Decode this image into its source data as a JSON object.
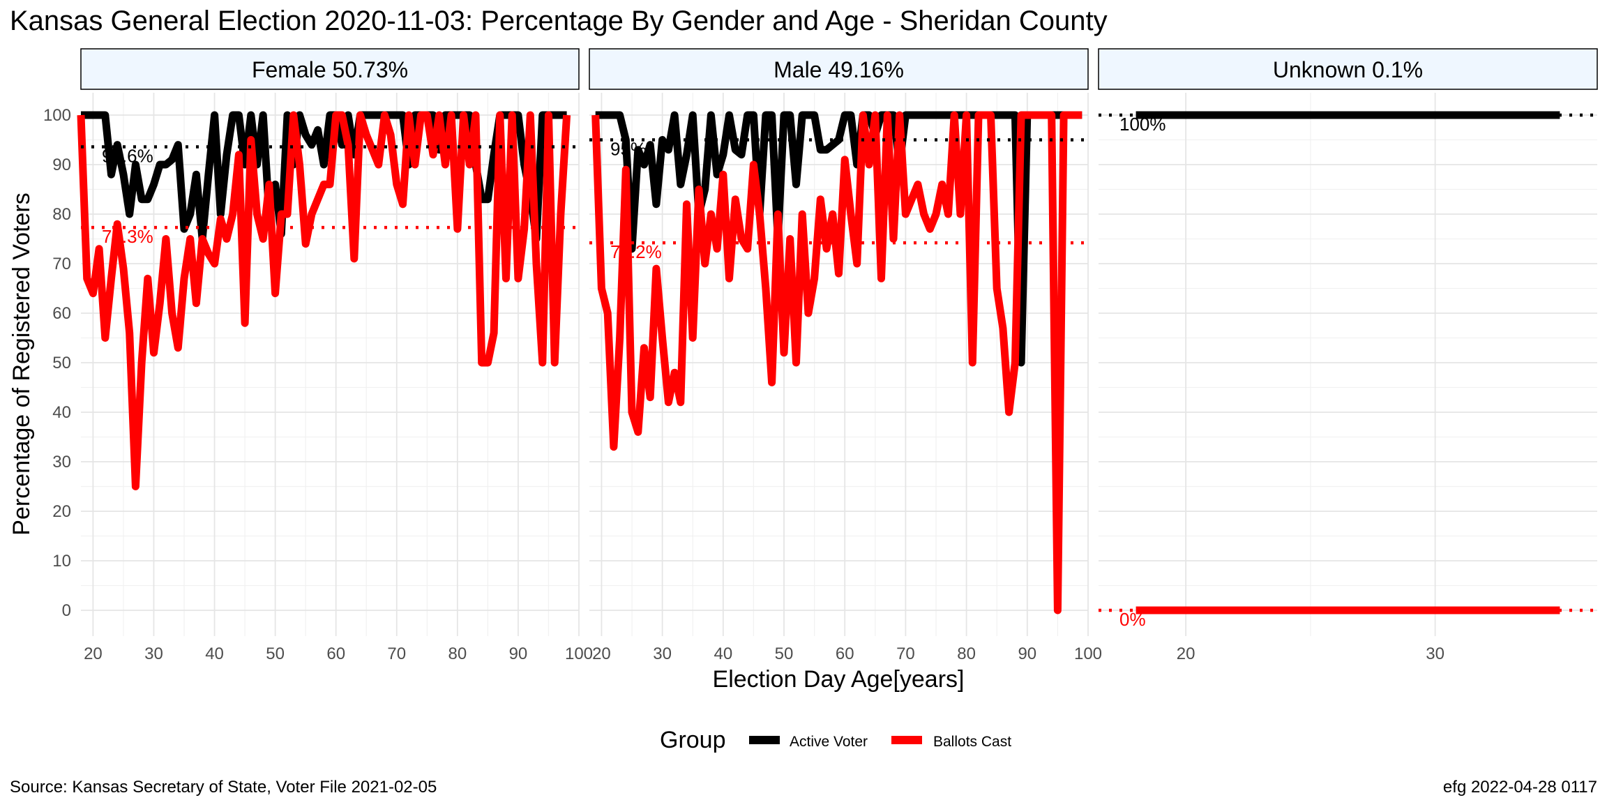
{
  "title": "Kansas General Election 2020-11-03:  Percentage By Gender and Age - Sheridan County",
  "source": "Source:  Kansas Secretary of State, Voter File  2021-02-05",
  "stamp": "efg 2022-04-28 0117",
  "legend": {
    "title": "Group",
    "items": [
      {
        "label": "Active Voter",
        "color": "#000000"
      },
      {
        "label": "Ballots Cast",
        "color": "#ff0000"
      }
    ]
  },
  "chart_data": {
    "type": "line",
    "xlabel": "Election Day Age[years]",
    "ylabel": "Percentage of Registered Voters",
    "ylim": [
      0,
      100
    ],
    "yticks": [
      0,
      10,
      20,
      30,
      40,
      50,
      60,
      70,
      80,
      90,
      100
    ],
    "panels": [
      {
        "label": "Female 50.73%",
        "xlim": [
          18,
          100
        ],
        "xticks": [
          20,
          30,
          40,
          50,
          60,
          70,
          80,
          90,
          100
        ],
        "refs": [
          {
            "series": "Active Voter",
            "value": 93.6,
            "label": "93.6%"
          },
          {
            "series": "Ballots Cast",
            "value": 77.3,
            "label": "77.3%"
          }
        ],
        "series": [
          {
            "name": "Active Voter",
            "x": [
              18,
              19,
              20,
              21,
              22,
              23,
              24,
              25,
              26,
              27,
              28,
              29,
              30,
              31,
              32,
              33,
              34,
              35,
              36,
              37,
              38,
              39,
              40,
              41,
              42,
              43,
              44,
              45,
              46,
              47,
              48,
              49,
              50,
              51,
              52,
              53,
              54,
              55,
              56,
              57,
              58,
              59,
              60,
              61,
              62,
              63,
              64,
              65,
              66,
              67,
              68,
              69,
              70,
              71,
              72,
              73,
              74,
              75,
              76,
              77,
              78,
              79,
              80,
              81,
              82,
              83,
              84,
              85,
              86,
              87,
              88,
              89,
              90,
              91,
              92,
              93,
              94,
              95,
              96,
              97,
              98
            ],
            "y": [
              100,
              100,
              100,
              100,
              100,
              88,
              94,
              88,
              80,
              90,
              83,
              83,
              86,
              90,
              90,
              91,
              94,
              77,
              80,
              88,
              75,
              88,
              100,
              80,
              92,
              100,
              100,
              90,
              100,
              90,
              100,
              80,
              86,
              76,
              100,
              90,
              100,
              96,
              94,
              97,
              90,
              100,
              100,
              94,
              100,
              92,
              100,
              100,
              100,
              100,
              100,
              100,
              100,
              100,
              90,
              100,
              100,
              100,
              100,
              93,
              100,
              100,
              100,
              100,
              100,
              90,
              83,
              83,
              92,
              100,
              100,
              100,
              100,
              90,
              84,
              75,
              100,
              100,
              100,
              100,
              100
            ]
          },
          {
            "name": "Ballots Cast",
            "x": [
              18,
              19,
              20,
              21,
              22,
              23,
              24,
              25,
              26,
              27,
              28,
              29,
              30,
              31,
              32,
              33,
              34,
              35,
              36,
              37,
              38,
              39,
              40,
              41,
              42,
              43,
              44,
              45,
              46,
              47,
              48,
              49,
              50,
              51,
              52,
              53,
              54,
              55,
              56,
              57,
              58,
              59,
              60,
              61,
              62,
              63,
              64,
              65,
              66,
              67,
              68,
              69,
              70,
              71,
              72,
              73,
              74,
              75,
              76,
              77,
              78,
              79,
              80,
              81,
              82,
              83,
              84,
              85,
              86,
              87,
              88,
              89,
              90,
              91,
              92,
              93,
              94,
              95,
              96,
              97,
              98
            ],
            "y": [
              100,
              67,
              64,
              73,
              55,
              67,
              78,
              69,
              56,
              25,
              50,
              67,
              52,
              62,
              75,
              60,
              53,
              67,
              75,
              62,
              75,
              72,
              70,
              79,
              75,
              80,
              92,
              58,
              95,
              80,
              75,
              86,
              64,
              80,
              80,
              100,
              90,
              74,
              80,
              83,
              86,
              86,
              100,
              100,
              94,
              71,
              100,
              96,
              93,
              90,
              100,
              96,
              86,
              82,
              100,
              90,
              100,
              100,
              92,
              100,
              90,
              100,
              77,
              100,
              90,
              100,
              50,
              50,
              56,
              100,
              67,
              100,
              67,
              77,
              100,
              70,
              50,
              100,
              50,
              80,
              100
            ]
          }
        ]
      },
      {
        "label": "Male 49.16%",
        "xlim": [
          18,
          100
        ],
        "xticks": [
          20,
          30,
          40,
          50,
          60,
          70,
          80,
          90,
          100
        ],
        "refs": [
          {
            "series": "Active Voter",
            "value": 95,
            "label": "95%"
          },
          {
            "series": "Ballots Cast",
            "value": 74.2,
            "label": "74.2%"
          }
        ],
        "series": [
          {
            "name": "Active Voter",
            "x": [
              19,
              20,
              21,
              22,
              23,
              24,
              25,
              26,
              27,
              28,
              29,
              30,
              31,
              32,
              33,
              34,
              35,
              36,
              37,
              38,
              39,
              40,
              41,
              42,
              43,
              44,
              45,
              46,
              47,
              48,
              49,
              50,
              51,
              52,
              53,
              54,
              55,
              56,
              57,
              58,
              59,
              60,
              61,
              62,
              63,
              64,
              65,
              66,
              67,
              68,
              69,
              70,
              71,
              72,
              73,
              74,
              75,
              76,
              77,
              78,
              79,
              80,
              81,
              82,
              83,
              84,
              85,
              86,
              87,
              88,
              89,
              90,
              91,
              92,
              93,
              94,
              95,
              96,
              97,
              98,
              99
            ],
            "y": [
              100,
              100,
              100,
              100,
              100,
              95,
              73,
              93,
              90,
              94,
              82,
              95,
              93,
              100,
              86,
              92,
              100,
              80,
              85,
              100,
              88,
              92,
              100,
              93,
              92,
              100,
              100,
              80,
              100,
              100,
              75,
              100,
              100,
              86,
              100,
              100,
              100,
              93,
              93,
              94,
              95,
              100,
              100,
              90,
              100,
              100,
              96,
              100,
              100,
              100,
              90,
              100,
              100,
              100,
              100,
              100,
              100,
              100,
              100,
              100,
              100,
              100,
              100,
              100,
              100,
              100,
              100,
              100,
              100,
              100,
              50,
              100,
              100,
              100,
              100,
              100,
              100,
              100,
              100,
              100,
              100
            ]
          },
          {
            "name": "Ballots Cast",
            "x": [
              19,
              20,
              21,
              22,
              23,
              24,
              25,
              26,
              27,
              28,
              29,
              30,
              31,
              32,
              33,
              34,
              35,
              36,
              37,
              38,
              39,
              40,
              41,
              42,
              43,
              44,
              45,
              46,
              47,
              48,
              49,
              50,
              51,
              52,
              53,
              54,
              55,
              56,
              57,
              58,
              59,
              60,
              61,
              62,
              63,
              64,
              65,
              66,
              67,
              68,
              69,
              70,
              71,
              72,
              73,
              74,
              75,
              76,
              77,
              78,
              79,
              80,
              81,
              82,
              83,
              84,
              85,
              86,
              87,
              88,
              89,
              90,
              91,
              92,
              93,
              94,
              95,
              96,
              97,
              98,
              99
            ],
            "y": [
              100,
              65,
              60,
              33,
              55,
              89,
              40,
              36,
              53,
              43,
              69,
              55,
              42,
              48,
              42,
              82,
              55,
              85,
              70,
              80,
              73,
              88,
              67,
              83,
              75,
              73,
              90,
              80,
              65,
              46,
              80,
              52,
              75,
              50,
              80,
              60,
              67,
              83,
              73,
              80,
              68,
              91,
              80,
              70,
              100,
              90,
              100,
              67,
              100,
              75,
              100,
              80,
              83,
              86,
              80,
              77,
              80,
              86,
              80,
              100,
              80,
              100,
              50,
              100,
              100,
              100,
              65,
              57,
              40,
              50,
              100,
              100,
              100,
              100,
              100,
              100,
              0,
              100,
              100,
              100,
              100
            ]
          }
        ]
      },
      {
        "label": "Unknown 0.1%",
        "xlim": [
          16.5,
          36.5
        ],
        "xticks": [
          20,
          30
        ],
        "refs": [
          {
            "series": "Active Voter",
            "value": 100,
            "label": "100%"
          },
          {
            "series": "Ballots Cast",
            "value": 0,
            "label": "0%"
          }
        ],
        "series": [
          {
            "name": "Active Voter",
            "x": [
              18,
              35
            ],
            "y": [
              100,
              100
            ]
          },
          {
            "name": "Ballots Cast",
            "x": [
              18,
              35
            ],
            "y": [
              0,
              0
            ]
          }
        ]
      }
    ]
  }
}
